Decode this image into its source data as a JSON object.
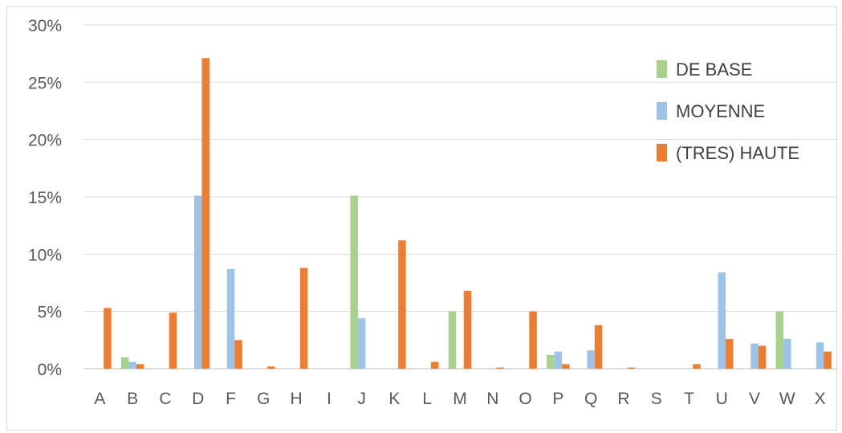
{
  "chart_data": {
    "type": "bar",
    "title": "",
    "xlabel": "",
    "ylabel": "",
    "ylim": [
      0,
      0.3
    ],
    "y_ticks": [
      {
        "value": 0.0,
        "label": "0%"
      },
      {
        "value": 0.05,
        "label": "5%"
      },
      {
        "value": 0.1,
        "label": "10%"
      },
      {
        "value": 0.15,
        "label": "15%"
      },
      {
        "value": 0.2,
        "label": "20%"
      },
      {
        "value": 0.25,
        "label": "25%"
      },
      {
        "value": 0.3,
        "label": "30%"
      }
    ],
    "grid": true,
    "legend_position": "top-right",
    "categories": [
      "A",
      "B",
      "C",
      "D",
      "F",
      "G",
      "H",
      "I",
      "J",
      "K",
      "L",
      "M",
      "N",
      "O",
      "P",
      "Q",
      "R",
      "S",
      "T",
      "U",
      "V",
      "W",
      "X"
    ],
    "series": [
      {
        "name": "DE BASE",
        "color": "#a9d18e",
        "values": [
          0,
          0.01,
          0,
          0,
          0,
          0,
          0,
          0,
          0.151,
          0,
          0,
          0.05,
          0,
          0,
          0.012,
          0,
          0,
          0,
          0,
          0,
          0,
          0.05,
          0
        ]
      },
      {
        "name": "MOYENNE",
        "color": "#9dc3e6",
        "values": [
          0,
          0.006,
          0,
          0.151,
          0.087,
          0,
          0,
          0,
          0.044,
          0,
          0,
          0,
          0,
          0,
          0.015,
          0.016,
          0,
          0,
          0,
          0.084,
          0.022,
          0.026,
          0.023
        ]
      },
      {
        "name": "(TRES) HAUTE",
        "color": "#ed7d31",
        "values": [
          0.053,
          0.004,
          0.049,
          0.271,
          0.025,
          0.002,
          0.088,
          0,
          0,
          0.112,
          0.006,
          0.068,
          0.001,
          0.05,
          0.004,
          0.038,
          0.001,
          0,
          0.004,
          0.026,
          0.02,
          0,
          0.015
        ]
      }
    ]
  }
}
